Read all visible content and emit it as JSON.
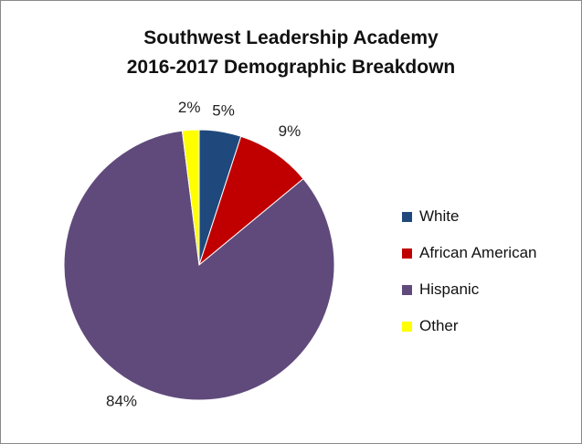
{
  "chart_data": {
    "type": "pie",
    "title": [
      "Southwest Leadership Academy",
      "2016-2017 Demographic Breakdown"
    ],
    "slices": [
      {
        "name": "White",
        "value": 5,
        "label": "5%",
        "color": "#1f497d"
      },
      {
        "name": "African American",
        "value": 9,
        "label": "9%",
        "color": "#c00000"
      },
      {
        "name": "Hispanic",
        "value": 84,
        "label": "84%",
        "color": "#604a7b"
      },
      {
        "name": "Other",
        "value": 2,
        "label": "2%",
        "color": "#ffff00"
      }
    ],
    "start": "12 o'clock",
    "direction": "clockwise",
    "legend_position": "right"
  }
}
